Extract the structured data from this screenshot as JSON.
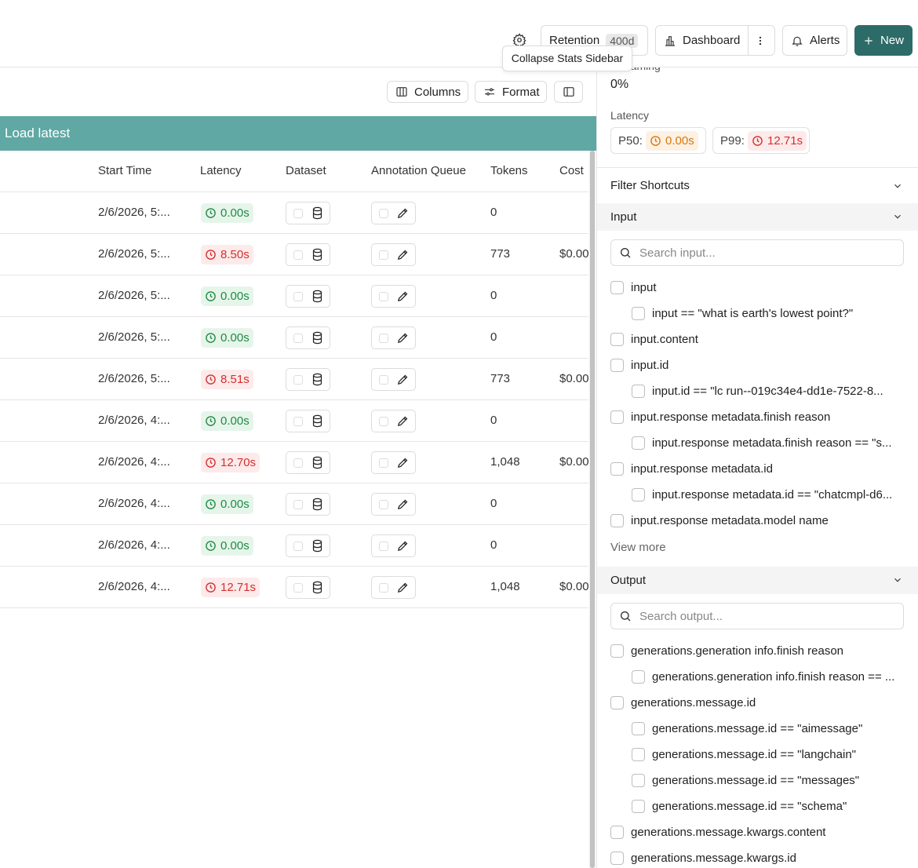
{
  "header": {
    "retention": "Retention",
    "retention_badge": "400d",
    "dashboard": "Dashboard",
    "alerts": "Alerts",
    "new": "New",
    "tooltip": "Collapse Stats Sidebar"
  },
  "toolbar": {
    "columns": "Columns",
    "format": "Format"
  },
  "banner": "Load latest",
  "table": {
    "columns": [
      "Start Time",
      "Latency",
      "Dataset",
      "Annotation Queue",
      "Tokens",
      "Cost"
    ],
    "rows": [
      {
        "start": "2/6/2026, 5:...",
        "latency": "0.00s",
        "latency_color": "green",
        "tokens": "0",
        "cost": ""
      },
      {
        "start": "2/6/2026, 5:...",
        "latency": "8.50s",
        "latency_color": "red",
        "tokens": "773",
        "cost": "$0.00"
      },
      {
        "start": "2/6/2026, 5:...",
        "latency": "0.00s",
        "latency_color": "green",
        "tokens": "0",
        "cost": ""
      },
      {
        "start": "2/6/2026, 5:...",
        "latency": "0.00s",
        "latency_color": "green",
        "tokens": "0",
        "cost": ""
      },
      {
        "start": "2/6/2026, 5:...",
        "latency": "8.51s",
        "latency_color": "red",
        "tokens": "773",
        "cost": "$0.00"
      },
      {
        "start": "2/6/2026, 4:...",
        "latency": "0.00s",
        "latency_color": "green",
        "tokens": "0",
        "cost": ""
      },
      {
        "start": "2/6/2026, 4:...",
        "latency": "12.70s",
        "latency_color": "red",
        "tokens": "1,048",
        "cost": "$0.00"
      },
      {
        "start": "2/6/2026, 4:...",
        "latency": "0.00s",
        "latency_color": "green",
        "tokens": "0",
        "cost": ""
      },
      {
        "start": "2/6/2026, 4:...",
        "latency": "0.00s",
        "latency_color": "green",
        "tokens": "0",
        "cost": ""
      },
      {
        "start": "2/6/2026, 4:...",
        "latency": "12.71s",
        "latency_color": "red",
        "tokens": "1,048",
        "cost": "$0.00"
      }
    ]
  },
  "sidebar": {
    "streaming_label": "Streaming",
    "streaming_value": "0%",
    "latency_label": "Latency",
    "p50_label": "P50:",
    "p50": "0.00s",
    "p99_label": "P99:",
    "p99": "12.71s",
    "filter_shortcuts": "Filter Shortcuts",
    "input": {
      "title": "Input",
      "placeholder": "Search input...",
      "items": [
        {
          "text": "input",
          "level": 1
        },
        {
          "text": "input == \"what is earth's lowest point?\"",
          "level": 2
        },
        {
          "text": "input.content",
          "level": 1
        },
        {
          "text": "input.id",
          "level": 1
        },
        {
          "text": "input.id == \"lc run--019c34e4-dd1e-7522-8...",
          "level": 2
        },
        {
          "text": "input.response metadata.finish reason",
          "level": 1
        },
        {
          "text": "input.response metadata.finish reason == \"s...",
          "level": 2
        },
        {
          "text": "input.response metadata.id",
          "level": 1
        },
        {
          "text": "input.response metadata.id == \"chatcmpl-d6...",
          "level": 2
        },
        {
          "text": "input.response metadata.model name",
          "level": 1
        }
      ],
      "view_more": "View more"
    },
    "output": {
      "title": "Output",
      "placeholder": "Search output...",
      "items": [
        {
          "text": "generations.generation info.finish reason",
          "level": 1
        },
        {
          "text": "generations.generation info.finish reason == ...",
          "level": 2
        },
        {
          "text": "generations.message.id",
          "level": 1
        },
        {
          "text": "generations.message.id == \"aimessage\"",
          "level": 2
        },
        {
          "text": "generations.message.id == \"langchain\"",
          "level": 2
        },
        {
          "text": "generations.message.id == \"messages\"",
          "level": 2
        },
        {
          "text": "generations.message.id == \"schema\"",
          "level": 2
        },
        {
          "text": "generations.message.kwargs.content",
          "level": 1
        },
        {
          "text": "generations.message.kwargs.id",
          "level": 1
        }
      ]
    }
  }
}
